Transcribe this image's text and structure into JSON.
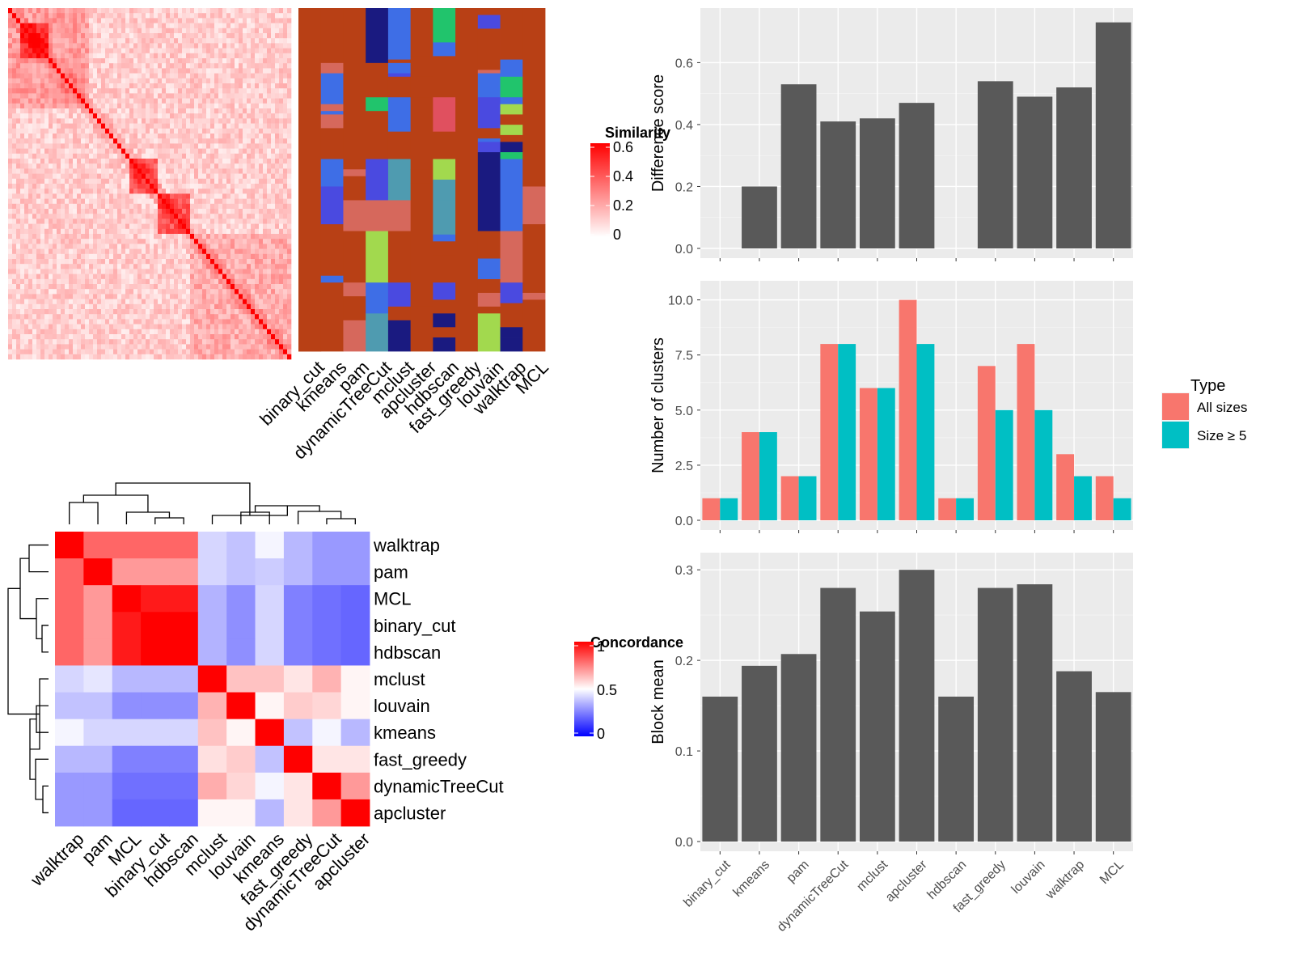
{
  "methods": [
    "binary_cut",
    "kmeans",
    "pam",
    "dynamicTreeCut",
    "mclust",
    "apcluster",
    "hdbscan",
    "fast_greedy",
    "louvain",
    "walktrap",
    "MCL"
  ],
  "similarity_legend": {
    "title": "Similarity",
    "ticks": [
      "0.6",
      "0.4",
      "0.2",
      "0"
    ],
    "colors": {
      "high": "#ff0000",
      "low": "#ffffff"
    }
  },
  "concordance": {
    "legend_title": "Concordance",
    "legend_ticks": [
      "1",
      "0.5",
      "0"
    ],
    "colors": {
      "high": "#ff0000",
      "mid": "#ffffff",
      "low": "#0000ff"
    },
    "row_order": [
      "walktrap",
      "pam",
      "MCL",
      "binary_cut",
      "hdbscan",
      "mclust",
      "louvain",
      "kmeans",
      "fast_greedy",
      "dynamicTreeCut",
      "apcluster"
    ],
    "col_order": [
      "walktrap",
      "pam",
      "MCL",
      "binary_cut",
      "hdbscan",
      "mclust",
      "louvain",
      "kmeans",
      "fast_greedy",
      "dynamicTreeCut",
      "apcluster"
    ],
    "matrix": [
      [
        1.0,
        0.8,
        0.8,
        0.8,
        0.8,
        0.42,
        0.38,
        0.48,
        0.36,
        0.3,
        0.3
      ],
      [
        0.8,
        1.0,
        0.7,
        0.7,
        0.7,
        0.42,
        0.38,
        0.4,
        0.36,
        0.3,
        0.3
      ],
      [
        0.8,
        0.7,
        1.0,
        0.95,
        0.95,
        0.35,
        0.28,
        0.42,
        0.25,
        0.22,
        0.2
      ],
      [
        0.8,
        0.7,
        0.95,
        1.0,
        1.0,
        0.35,
        0.28,
        0.42,
        0.25,
        0.22,
        0.2
      ],
      [
        0.8,
        0.7,
        0.95,
        1.0,
        1.0,
        0.35,
        0.28,
        0.42,
        0.25,
        0.22,
        0.2
      ],
      [
        0.42,
        0.45,
        0.36,
        0.36,
        0.36,
        1.0,
        0.62,
        0.62,
        0.55,
        0.65,
        0.52
      ],
      [
        0.38,
        0.38,
        0.28,
        0.28,
        0.28,
        0.65,
        1.0,
        0.52,
        0.6,
        0.58,
        0.52
      ],
      [
        0.48,
        0.42,
        0.42,
        0.42,
        0.42,
        0.62,
        0.52,
        1.0,
        0.38,
        0.48,
        0.36
      ],
      [
        0.36,
        0.36,
        0.25,
        0.25,
        0.25,
        0.56,
        0.6,
        0.38,
        1.0,
        0.55,
        0.55
      ],
      [
        0.3,
        0.3,
        0.22,
        0.22,
        0.22,
        0.66,
        0.58,
        0.48,
        0.55,
        1.0,
        0.7
      ],
      [
        0.3,
        0.3,
        0.2,
        0.2,
        0.2,
        0.52,
        0.52,
        0.36,
        0.55,
        0.7,
        1.0
      ]
    ]
  },
  "membership_colors": [
    "#b84015",
    "#d6685c",
    "#3e6ee6",
    "#1a1a80",
    "#21c46c",
    "#a2d94e",
    "#4f9bb0",
    "#4a4ae0",
    "#e0505f"
  ],
  "chart_data": [
    {
      "type": "bar",
      "categories": [
        "binary_cut",
        "kmeans",
        "pam",
        "dynamicTreeCut",
        "mclust",
        "apcluster",
        "hdbscan",
        "fast_greedy",
        "louvain",
        "walktrap",
        "MCL"
      ],
      "values": [
        null,
        0.2,
        0.53,
        0.41,
        0.42,
        0.47,
        null,
        0.54,
        0.49,
        0.52,
        0.73
      ],
      "ylabel": "Difference score",
      "ylim": [
        0,
        0.75
      ],
      "yticks": [
        "0.0",
        "0.2",
        "0.4",
        "0.6"
      ],
      "bar_color": "#595959",
      "panel_bg": "#ebebeb"
    },
    {
      "type": "bar",
      "categories": [
        "binary_cut",
        "kmeans",
        "pam",
        "dynamicTreeCut",
        "mclust",
        "apcluster",
        "hdbscan",
        "fast_greedy",
        "louvain",
        "walktrap",
        "MCL"
      ],
      "series": [
        {
          "name": "All sizes",
          "values": [
            1,
            4,
            2,
            8,
            6,
            10,
            1,
            7,
            8,
            3,
            2
          ],
          "color": "#f8766d"
        },
        {
          "name": "Size ≥ 5",
          "values": [
            1,
            4,
            2,
            8,
            6,
            8,
            1,
            5,
            5,
            2,
            1
          ],
          "color": "#00bfc4"
        }
      ],
      "ylabel": "Number of clusters",
      "ylim": [
        0,
        10.5
      ],
      "yticks": [
        "0.0",
        "2.5",
        "5.0",
        "7.5",
        "10.0"
      ],
      "legend": {
        "title": "Type",
        "position": "right"
      },
      "panel_bg": "#ebebeb"
    },
    {
      "type": "bar",
      "categories": [
        "binary_cut",
        "kmeans",
        "pam",
        "dynamicTreeCut",
        "mclust",
        "apcluster",
        "hdbscan",
        "fast_greedy",
        "louvain",
        "walktrap",
        "MCL"
      ],
      "values": [
        0.16,
        0.194,
        0.207,
        0.28,
        0.254,
        0.3,
        0.16,
        0.28,
        0.284,
        0.188,
        0.165
      ],
      "ylabel": "Block mean",
      "ylim": [
        0,
        0.31
      ],
      "yticks": [
        "0.0",
        "0.1",
        "0.2",
        "0.3"
      ],
      "bar_color": "#595959",
      "panel_bg": "#ebebeb"
    }
  ]
}
